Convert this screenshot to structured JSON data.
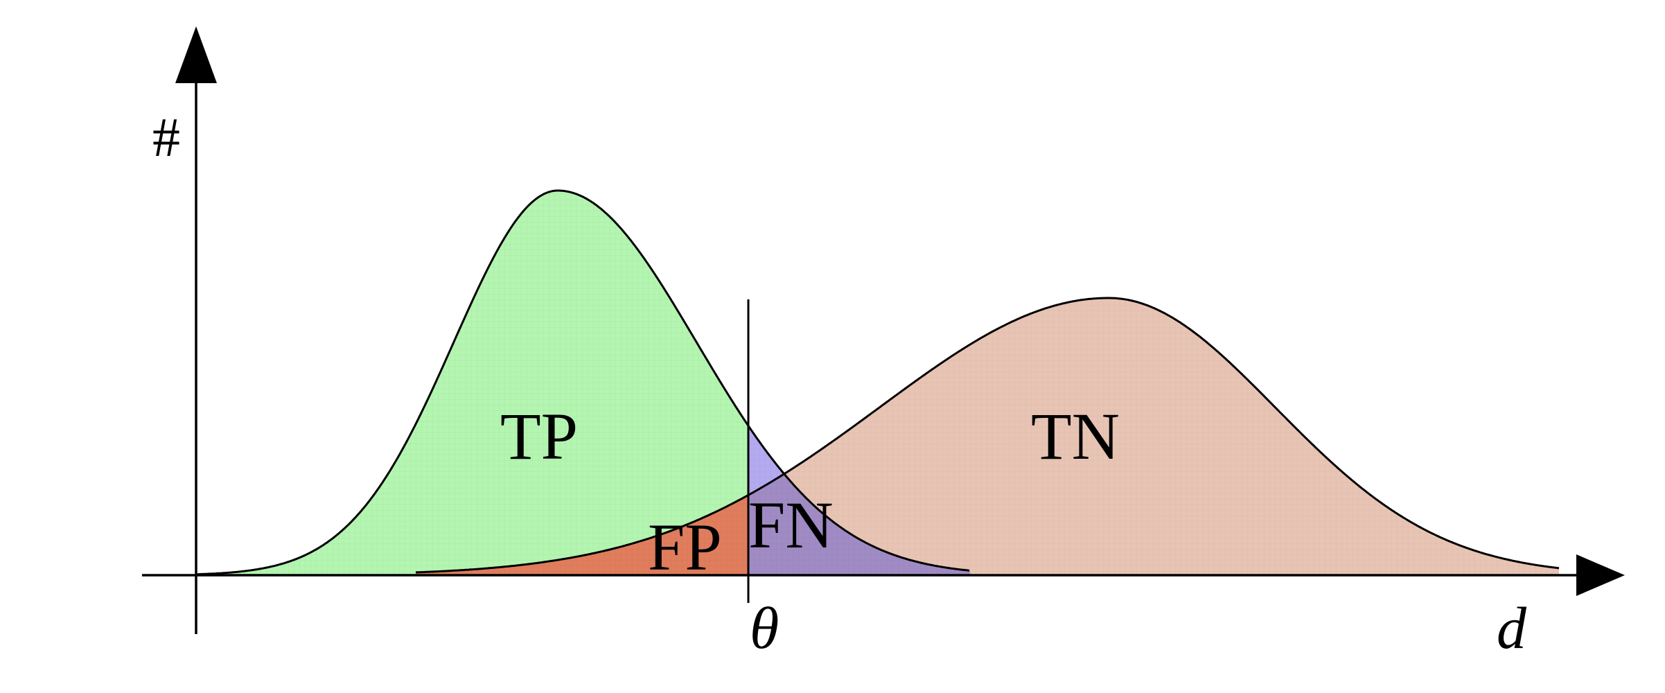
{
  "diagram": {
    "y_axis_label": "#",
    "x_axis_label": "d",
    "threshold_label": "θ",
    "regions": {
      "tp": "TP",
      "fp": "FP",
      "fn": "FN",
      "tn": "TN"
    },
    "colors": {
      "tp_fill": "#b3f5b1",
      "tn_fill": "#e8c4b4",
      "fp_fill": "#e07d5c",
      "fn_fill": "#b3aaf0",
      "overlap_fill": "#a08bc4",
      "line": "#000000"
    }
  }
}
